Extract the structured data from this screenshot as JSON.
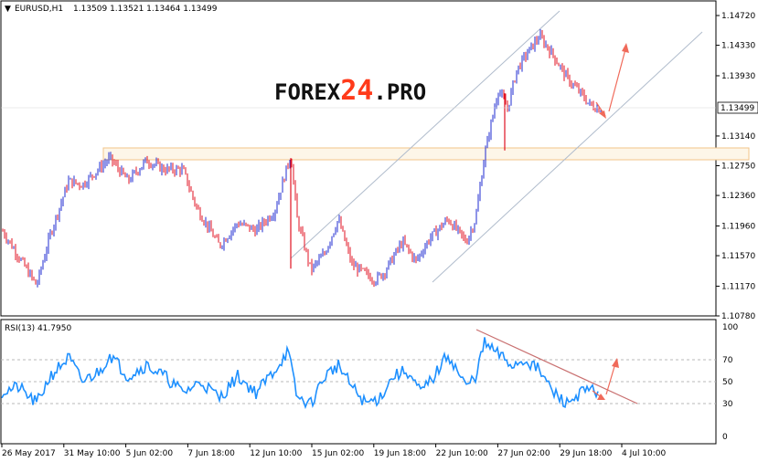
{
  "header": {
    "symbol": "EURUSD,H1",
    "ohlc": "1.13509 1.13521 1.13464 1.13499"
  },
  "watermark": {
    "part1": "FOREX",
    "part2": "24",
    "part3": ".PRO"
  },
  "rsi_header": "RSI(13) 41.7950",
  "colors": {
    "bull": "#1f2bd1",
    "bear": "#e01020",
    "rsi": "#1e90ff",
    "channel": "#b0bccc",
    "zone": "#f2c48a",
    "arrow": "#f06a5a",
    "trend": "#c97070",
    "logo_dark": "#111111",
    "logo_accent": "#ff3a1a"
  },
  "chart_data": [
    {
      "type": "line",
      "title": "",
      "series": [
        {
          "name": "",
          "points": [
            [
              0,
              1.1195
            ],
            [
              40,
              1.1118
            ],
            [
              55,
              1.1185
            ],
            [
              75,
              1.1255
            ],
            [
              90,
              1.125
            ],
            [
              120,
              1.1285
            ],
            [
              140,
              1.1255
            ],
            [
              160,
              1.1282
            ],
            [
              180,
              1.127
            ],
            [
              200,
              1.127
            ],
            [
              215,
              1.122
            ],
            [
              240,
              1.117
            ],
            [
              260,
              1.12
            ],
            [
              280,
              1.119
            ],
            [
              300,
              1.1215
            ],
            [
              318,
              1.129
            ],
            [
              325,
              1.1205
            ],
            [
              340,
              1.1138
            ],
            [
              355,
              1.116
            ],
            [
              370,
              1.1205
            ],
            [
              385,
              1.1145
            ],
            [
              410,
              1.1125
            ],
            [
              420,
              1.1135
            ],
            [
              440,
              1.1175
            ],
            [
              455,
              1.115
            ],
            [
              470,
              1.118
            ],
            [
              490,
              1.1205
            ],
            [
              510,
              1.1175
            ],
            [
              520,
              1.1205
            ],
            [
              530,
              1.129
            ],
            [
              545,
              1.1375
            ],
            [
              555,
              1.135
            ],
            [
              565,
              1.14
            ],
            [
              575,
              1.142
            ],
            [
              590,
              1.1445
            ],
            [
              605,
              1.142
            ],
            [
              620,
              1.139
            ],
            [
              635,
              1.137
            ],
            [
              645,
              1.1355
            ],
            [
              655,
              1.135
            ]
          ]
        }
      ],
      "y_ticks": [
        "1.14720",
        "1.14330",
        "1.13930",
        "1.13140",
        "1.12750",
        "1.12360",
        "1.11960",
        "1.11570",
        "1.11170",
        "1.10780"
      ],
      "current_price": "1.13499",
      "ylim": [
        1.1078,
        1.1472
      ],
      "annotations": [
        "rising channel",
        "resistance zone 1.1278-1.1300",
        "projected rise arrow"
      ]
    },
    {
      "type": "line",
      "title": "RSI(13) 41.7950",
      "series": [
        {
          "name": "",
          "points": [
            [
              0,
              40
            ],
            [
              20,
              45
            ],
            [
              40,
              30
            ],
            [
              55,
              55
            ],
            [
              75,
              72
            ],
            [
              90,
              50
            ],
            [
              110,
              60
            ],
            [
              120,
              75
            ],
            [
              140,
              55
            ],
            [
              160,
              65
            ],
            [
              180,
              55
            ],
            [
              200,
              40
            ],
            [
              220,
              50
            ],
            [
              240,
              35
            ],
            [
              260,
              55
            ],
            [
              280,
              40
            ],
            [
              300,
              60
            ],
            [
              315,
              78
            ],
            [
              325,
              35
            ],
            [
              340,
              30
            ],
            [
              355,
              55
            ],
            [
              370,
              65
            ],
            [
              385,
              45
            ],
            [
              400,
              30
            ],
            [
              415,
              35
            ],
            [
              430,
              55
            ],
            [
              445,
              60
            ],
            [
              460,
              40
            ],
            [
              475,
              55
            ],
            [
              490,
              75
            ],
            [
              510,
              45
            ],
            [
              520,
              55
            ],
            [
              530,
              85
            ],
            [
              545,
              75
            ],
            [
              560,
              65
            ],
            [
              575,
              70
            ],
            [
              590,
              60
            ],
            [
              605,
              40
            ],
            [
              620,
              30
            ],
            [
              635,
              40
            ],
            [
              650,
              42
            ]
          ]
        }
      ],
      "y_ticks": [
        "100",
        "70",
        "50",
        "30",
        "0"
      ],
      "ylim": [
        0,
        100
      ],
      "annotations": [
        "descending trendline",
        "projected rise arrow"
      ]
    }
  ],
  "x_ticks": [
    "26 May 2017",
    "31 May 10:00",
    "5 Jun 02:00",
    "7 Jun 18:00",
    "12 Jun 10:00",
    "15 Jun 02:00",
    "19 Jun 18:00",
    "22 Jun 10:00",
    "27 Jun 02:00",
    "29 Jun 18:00",
    "4 Jul 10:00"
  ]
}
